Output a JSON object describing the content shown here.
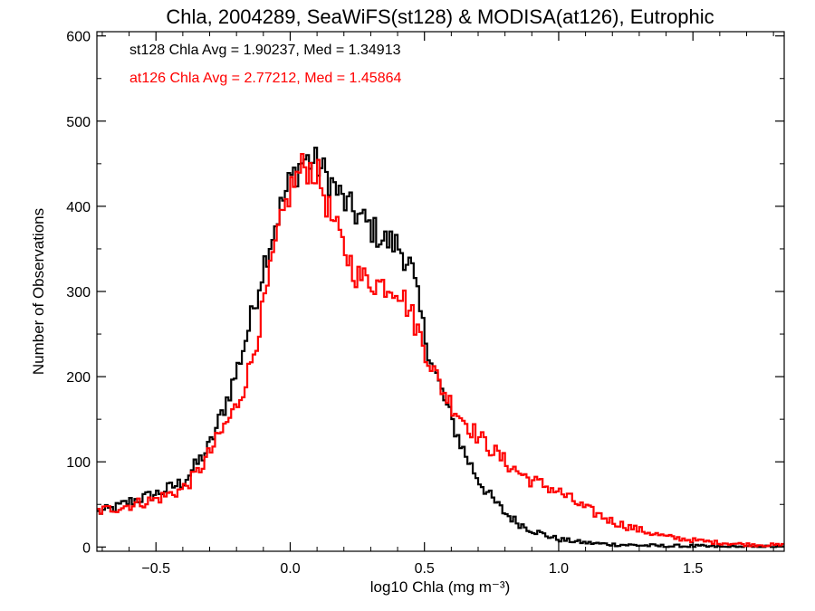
{
  "chart_data": {
    "type": "histogram",
    "title": "Chla, 2004289, SeaWiFS(st128) & MODISA(at126), Eutrophic",
    "xlabel": "log10 Chla (mg m⁻³)",
    "ylabel": "Number of Observations",
    "xlim": [
      -0.72,
      1.84
    ],
    "ylim": [
      -5,
      605
    ],
    "xticks": [
      -0.5,
      0.0,
      0.5,
      1.0,
      1.5
    ],
    "xtick_labels": [
      "−0.5",
      "0.0",
      "0.5",
      "1.0",
      "1.5"
    ],
    "yticks": [
      0,
      100,
      200,
      300,
      400,
      500,
      600
    ],
    "ytick_labels": [
      "0",
      "100",
      "200",
      "300",
      "400",
      "500",
      "600"
    ],
    "annotations": [
      {
        "text": "st128 Chla Avg = 1.90237, Med = 1.34913",
        "color": "#000000"
      },
      {
        "text": "at126 Chla Avg = 2.77212, Med = 1.45864",
        "color": "#ff0000"
      }
    ],
    "bin_width": 0.01,
    "series": [
      {
        "name": "st128",
        "color": "#000000",
        "points": [
          [
            -0.72,
            40
          ],
          [
            -0.65,
            46
          ],
          [
            -0.6,
            53
          ],
          [
            -0.5,
            62
          ],
          [
            -0.4,
            76
          ],
          [
            -0.35,
            96
          ],
          [
            -0.3,
            118
          ],
          [
            -0.25,
            160
          ],
          [
            -0.2,
            205
          ],
          [
            -0.15,
            262
          ],
          [
            -0.1,
            330
          ],
          [
            -0.05,
            385
          ],
          [
            0.0,
            430
          ],
          [
            0.05,
            455
          ],
          [
            0.1,
            450
          ],
          [
            0.15,
            430
          ],
          [
            0.2,
            405
          ],
          [
            0.25,
            390
          ],
          [
            0.3,
            375
          ],
          [
            0.35,
            360
          ],
          [
            0.4,
            355
          ],
          [
            0.45,
            330
          ],
          [
            0.5,
            250
          ],
          [
            0.55,
            195
          ],
          [
            0.6,
            150
          ],
          [
            0.65,
            110
          ],
          [
            0.7,
            80
          ],
          [
            0.75,
            57
          ],
          [
            0.8,
            40
          ],
          [
            0.85,
            28
          ],
          [
            0.9,
            20
          ],
          [
            0.95,
            14
          ],
          [
            1.0,
            9
          ],
          [
            1.1,
            5
          ],
          [
            1.2,
            3
          ],
          [
            1.3,
            2
          ],
          [
            1.4,
            1
          ],
          [
            1.5,
            1
          ],
          [
            1.6,
            0
          ],
          [
            1.84,
            0
          ]
        ]
      },
      {
        "name": "at126",
        "color": "#ff0000",
        "points": [
          [
            -0.72,
            42
          ],
          [
            -0.65,
            46
          ],
          [
            -0.6,
            49
          ],
          [
            -0.5,
            56
          ],
          [
            -0.4,
            68
          ],
          [
            -0.35,
            85
          ],
          [
            -0.3,
            110
          ],
          [
            -0.25,
            138
          ],
          [
            -0.2,
            165
          ],
          [
            -0.15,
            210
          ],
          [
            -0.1,
            280
          ],
          [
            -0.05,
            360
          ],
          [
            0.0,
            420
          ],
          [
            0.05,
            448
          ],
          [
            0.1,
            440
          ],
          [
            0.15,
            390
          ],
          [
            0.2,
            350
          ],
          [
            0.25,
            318
          ],
          [
            0.3,
            312
          ],
          [
            0.35,
            308
          ],
          [
            0.4,
            305
          ],
          [
            0.45,
            275
          ],
          [
            0.5,
            235
          ],
          [
            0.55,
            195
          ],
          [
            0.6,
            168
          ],
          [
            0.65,
            148
          ],
          [
            0.7,
            130
          ],
          [
            0.75,
            115
          ],
          [
            0.8,
            100
          ],
          [
            0.85,
            88
          ],
          [
            0.9,
            78
          ],
          [
            0.95,
            72
          ],
          [
            1.0,
            65
          ],
          [
            1.05,
            55
          ],
          [
            1.1,
            45
          ],
          [
            1.15,
            38
          ],
          [
            1.2,
            30
          ],
          [
            1.3,
            20
          ],
          [
            1.4,
            12
          ],
          [
            1.5,
            8
          ],
          [
            1.6,
            5
          ],
          [
            1.7,
            3
          ],
          [
            1.84,
            2
          ]
        ]
      }
    ]
  }
}
